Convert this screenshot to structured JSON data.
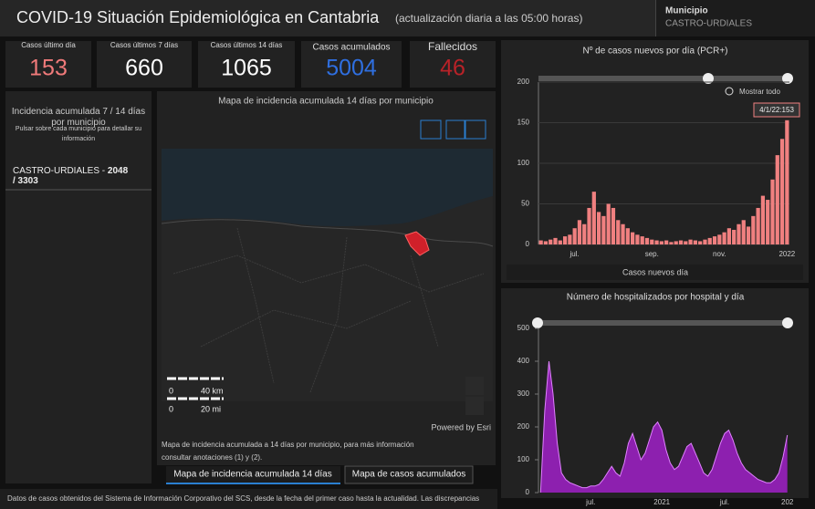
{
  "header": {
    "title": "COVID-19 Situación Epidemiológica en Cantabria",
    "subtitle": "(actualización diaria a las 05:00 horas)",
    "municipio_label": "Municipio",
    "municipio": "CASTRO-URDIALES"
  },
  "kpis": [
    {
      "label": "Casos último día",
      "value": 153,
      "color": "#f07a7a"
    },
    {
      "label": "Casos últimos 7 días",
      "value": 660,
      "color": "#ffffff"
    },
    {
      "label": "Casos últimos 14 días",
      "value": 1065,
      "color": "#ffffff"
    },
    {
      "label": "Casos acumulados",
      "value": 5004,
      "color": "#2f6fe0"
    },
    {
      "label": "Fallecidos",
      "value": 46,
      "color": "#b82228"
    }
  ],
  "left_panel": {
    "title": "Incidencia acumulada 7 / 14 días por municipio",
    "hint": "Pulsar sobre cada municipio para detallar su información",
    "selection": "CASTRO-URDIALES -",
    "selection_values": "2048 / 3303"
  },
  "map": {
    "title": "Mapa de incidencia acumulada 14 días por municipio",
    "scale": [
      "0",
      "40 km",
      "0",
      "20 mi"
    ],
    "attribution": "Powered by Esri",
    "caption": "Mapa de incidencia acumulada a 14 días por municipio, para más información consultar anotaciones (1) y (2).",
    "tabs": [
      "Mapa de incidencia acumulada 14 días",
      "Mapa de casos acumulados"
    ]
  },
  "footer": "Datos de casos obtenidos del Sistema de Información Corporativo del SCS, desde la fecha del primer caso hasta la actualidad. Las discrepancias",
  "chart_data": [
    {
      "type": "bar",
      "title": "Nº de casos nuevos por día (PCR+)",
      "zoom_label": "Mostrar todo",
      "tooltip": "4/1/22:153",
      "xlabel": "Casos nuevos día",
      "color": "#f08080",
      "grid": true,
      "ylim": [
        0,
        200
      ],
      "yticks": [
        0,
        50,
        100,
        150,
        200
      ],
      "categories": [
        null,
        null,
        null,
        null,
        null,
        null,
        null,
        "jul.",
        null,
        null,
        null,
        null,
        null,
        null,
        null,
        null,
        null,
        null,
        null,
        null,
        null,
        null,
        null,
        "sep.",
        null,
        null,
        null,
        null,
        null,
        null,
        null,
        null,
        null,
        null,
        null,
        null,
        null,
        "nov.",
        null,
        null,
        null,
        null,
        null,
        null,
        null,
        null,
        null,
        null,
        null,
        null,
        null,
        "2022"
      ],
      "values": [
        5,
        4,
        6,
        8,
        5,
        10,
        12,
        20,
        30,
        25,
        45,
        65,
        40,
        35,
        50,
        45,
        30,
        25,
        20,
        15,
        12,
        10,
        8,
        6,
        5,
        4,
        5,
        3,
        4,
        5,
        4,
        6,
        5,
        4,
        6,
        8,
        10,
        12,
        15,
        20,
        18,
        25,
        30,
        22,
        35,
        45,
        60,
        55,
        80,
        110,
        130,
        153
      ]
    },
    {
      "type": "area",
      "title": "Número de hospitalizados por hospital y día",
      "color": "#a020c8",
      "grid": false,
      "ylim": [
        0,
        500
      ],
      "yticks": [
        0,
        100,
        200,
        300,
        400,
        500
      ],
      "categories": [
        null,
        null,
        null,
        null,
        null,
        null,
        null,
        null,
        null,
        null,
        null,
        null,
        "jul.",
        null,
        null,
        null,
        null,
        null,
        null,
        null,
        null,
        null,
        null,
        null,
        null,
        null,
        null,
        null,
        null,
        "2021",
        null,
        null,
        null,
        null,
        null,
        null,
        null,
        null,
        null,
        null,
        null,
        null,
        null,
        null,
        "jul.",
        null,
        null,
        null,
        null,
        null,
        null,
        null,
        null,
        null,
        null,
        null,
        null,
        null,
        null,
        "202"
      ],
      "values": [
        0,
        250,
        400,
        300,
        150,
        60,
        40,
        30,
        25,
        20,
        15,
        15,
        20,
        20,
        25,
        40,
        60,
        80,
        60,
        50,
        90,
        150,
        180,
        140,
        100,
        120,
        160,
        200,
        215,
        190,
        130,
        90,
        70,
        80,
        110,
        140,
        150,
        120,
        90,
        60,
        50,
        70,
        110,
        150,
        180,
        190,
        160,
        120,
        90,
        70,
        60,
        50,
        40,
        35,
        30,
        30,
        40,
        60,
        110,
        175
      ]
    }
  ]
}
